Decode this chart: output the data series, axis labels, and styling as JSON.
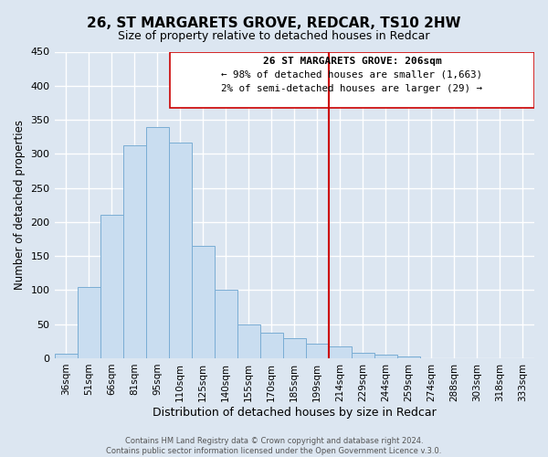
{
  "title_line1": "26, ST MARGARETS GROVE, REDCAR, TS10 2HW",
  "subtitle": "Size of property relative to detached houses in Redcar",
  "xlabel": "Distribution of detached houses by size in Redcar",
  "ylabel": "Number of detached properties",
  "bar_color": "#c9ddf0",
  "bar_edge_color": "#7aadd4",
  "background_color": "#dce6f1",
  "bin_labels": [
    "36sqm",
    "51sqm",
    "66sqm",
    "81sqm",
    "95sqm",
    "110sqm",
    "125sqm",
    "140sqm",
    "155sqm",
    "170sqm",
    "185sqm",
    "199sqm",
    "214sqm",
    "229sqm",
    "244sqm",
    "259sqm",
    "274sqm",
    "288sqm",
    "303sqm",
    "318sqm",
    "333sqm"
  ],
  "bar_heights": [
    7,
    105,
    210,
    313,
    340,
    316,
    165,
    100,
    50,
    37,
    30,
    21,
    17,
    8,
    5,
    3,
    0,
    0,
    0,
    0,
    0
  ],
  "vline_color": "#cc0000",
  "ylim": [
    0,
    450
  ],
  "annotation_title": "26 ST MARGARETS GROVE: 206sqm",
  "annotation_line2": "← 98% of detached houses are smaller (1,663)",
  "annotation_line3": "2% of semi-detached houses are larger (29) →",
  "footer_line1": "Contains HM Land Registry data © Crown copyright and database right 2024.",
  "footer_line2": "Contains public sector information licensed under the Open Government Licence v.3.0."
}
